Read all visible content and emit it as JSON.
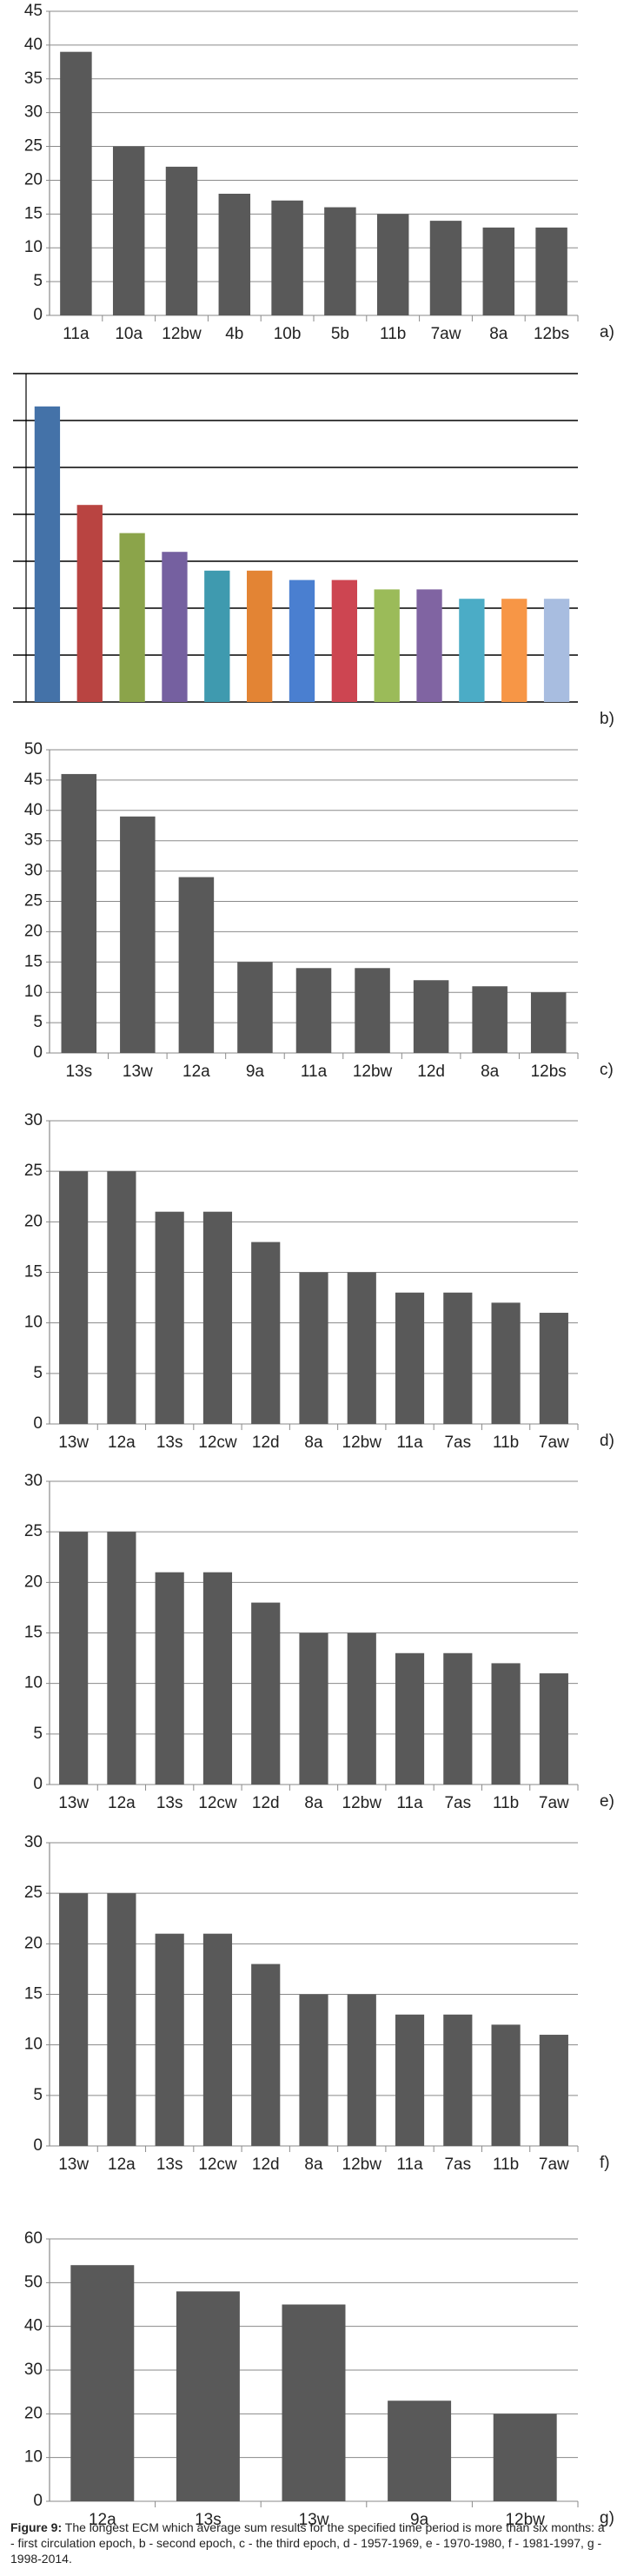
{
  "chart_data": [
    {
      "type": "bar",
      "label": "a)",
      "color": "#595959",
      "grid": true,
      "tick_labels": true,
      "categories": [
        "11a",
        "10a",
        "12bw",
        "4b",
        "10b",
        "5b",
        "11b",
        "7aw",
        "8a",
        "12bs"
      ],
      "values": [
        39,
        25,
        22,
        18,
        17,
        16,
        15,
        14,
        13,
        13
      ],
      "ylim": [
        0,
        45
      ],
      "yticks": [
        0,
        5,
        10,
        15,
        20,
        25,
        30,
        35,
        40,
        45
      ]
    },
    {
      "type": "bar",
      "label": "b)",
      "grid": true,
      "tick_labels": false,
      "grid_color": "#000",
      "colors": [
        "#4472a8",
        "#b94441",
        "#8ba44a",
        "#7560a0",
        "#3f9aaf",
        "#e38434",
        "#4a7fd0",
        "#cd4551",
        "#9bbb59",
        "#8064a2",
        "#4bacc6",
        "#f79646",
        "#a8bde0"
      ],
      "values": [
        31.5,
        21,
        18,
        16,
        14,
        14,
        13,
        13,
        12,
        12,
        11,
        11,
        11
      ],
      "ylim": [
        0,
        35
      ],
      "yticks": [
        0,
        5,
        10,
        15,
        20,
        25,
        30,
        35
      ]
    },
    {
      "type": "bar",
      "label": "c)",
      "color": "#595959",
      "grid": true,
      "tick_labels": true,
      "categories": [
        "13s",
        "13w",
        "12a",
        "9a",
        "11a",
        "12bw",
        "12d",
        "8a",
        "12bs"
      ],
      "values": [
        46,
        39,
        29,
        15,
        14,
        14,
        12,
        11,
        10
      ],
      "ylim": [
        0,
        50
      ],
      "yticks": [
        0,
        5,
        10,
        15,
        20,
        25,
        30,
        35,
        40,
        45,
        50
      ]
    },
    {
      "type": "bar",
      "label": "d)",
      "color": "#595959",
      "grid": true,
      "tick_labels": true,
      "categories": [
        "13w",
        "12a",
        "13s",
        "12cw",
        "12d",
        "8a",
        "12bw",
        "11a",
        "7as",
        "11b",
        "7aw"
      ],
      "values": [
        25,
        25,
        21,
        21,
        18,
        15,
        15,
        13,
        13,
        12,
        11
      ],
      "ylim": [
        0,
        30
      ],
      "yticks": [
        0,
        5,
        10,
        15,
        20,
        25,
        30
      ]
    },
    {
      "type": "bar",
      "label": "e)",
      "color": "#595959",
      "grid": true,
      "tick_labels": true,
      "categories": [
        "13w",
        "12a",
        "13s",
        "12cw",
        "12d",
        "8a",
        "12bw",
        "11a",
        "7as",
        "11b",
        "7aw"
      ],
      "values": [
        25,
        25,
        21,
        21,
        18,
        15,
        15,
        13,
        13,
        12,
        11
      ],
      "ylim": [
        0,
        30
      ],
      "yticks": [
        0,
        5,
        10,
        15,
        20,
        25,
        30
      ]
    },
    {
      "type": "bar",
      "label": "f)",
      "color": "#595959",
      "grid": true,
      "tick_labels": true,
      "categories": [
        "13w",
        "12a",
        "13s",
        "12cw",
        "12d",
        "8a",
        "12bw",
        "11a",
        "7as",
        "11b",
        "7aw"
      ],
      "values": [
        25,
        25,
        21,
        21,
        18,
        15,
        15,
        13,
        13,
        12,
        11
      ],
      "ylim": [
        0,
        30
      ],
      "yticks": [
        0,
        5,
        10,
        15,
        20,
        25,
        30
      ]
    },
    {
      "type": "bar",
      "label": "g)",
      "color": "#595959",
      "grid": true,
      "tick_labels": true,
      "categories": [
        "12a",
        "13s",
        "13w",
        "9a",
        "12bw"
      ],
      "values": [
        54,
        48,
        45,
        23,
        20
      ],
      "ylim": [
        0,
        60
      ],
      "yticks": [
        0,
        10,
        20,
        30,
        40,
        50,
        60
      ]
    }
  ],
  "caption": {
    "label": "Figure 9:",
    "text": "The longest ECM which average sum results for the specified time period is more than six months: a - first circulation epoch, b - second epoch, c - the third epoch, d - 1957-1969, e - 1970-1980, f - 1981-1997, g - 1998-2014."
  }
}
